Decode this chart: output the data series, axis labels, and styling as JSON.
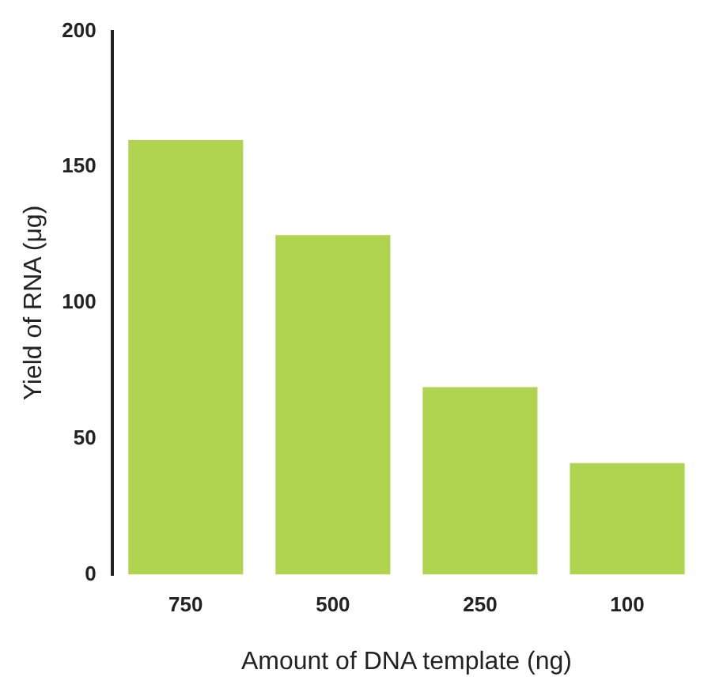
{
  "chart_data": {
    "type": "bar",
    "xlabel": "Amount of DNA template (ng)",
    "ylabel": "Yield of RNA (μg)",
    "categories": [
      "750",
      "500",
      "250",
      "100"
    ],
    "values": [
      160,
      125,
      69,
      41
    ],
    "color": "#b0d450",
    "ylim": [
      0,
      200
    ],
    "yticks": [
      0,
      50,
      100,
      150,
      200
    ],
    "grid": false,
    "legend": false
  }
}
